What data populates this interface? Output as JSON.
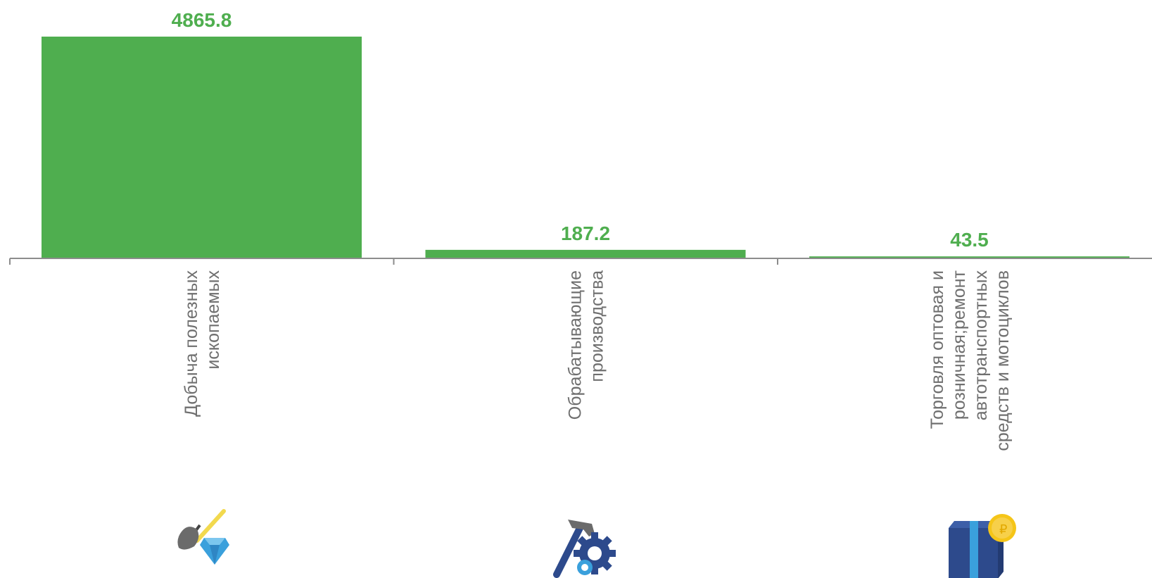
{
  "chart_data": {
    "type": "bar",
    "categories": [
      "Добыча полезных ископаемых",
      "Обрабатывающие производства",
      "Торговля оптовая и розничная;ремонт автотранспортных средств и мотоциклов"
    ],
    "category_lines": [
      [
        "Добыча полезных",
        "ископаемых"
      ],
      [
        "Обрабатывающие",
        "производства"
      ],
      [
        "Торговля оптовая и",
        "розничная;ремонт",
        "автотранспортных",
        "средств и мотоциклов"
      ]
    ],
    "values": [
      4865.8,
      187.2,
      43.5
    ],
    "value_labels": [
      "4865.8",
      "187.2",
      "43.5"
    ],
    "ylim": [
      0,
      4865.8
    ],
    "grid": false,
    "legend": "none",
    "title": "",
    "xlabel": "",
    "ylabel": ""
  },
  "icons": [
    "shovel-diamond-icon",
    "hammer-gear-icon",
    "gift-box-coin-icon"
  ],
  "colors": {
    "bar": "#4fae4f",
    "value_label": "#4fae4f",
    "axis": "#8c8c8c",
    "category_text": "#6f6f6f",
    "icon_blue": "#2d4a8c",
    "icon_light_blue": "#3aa0dc",
    "icon_gray": "#666666",
    "icon_yellow": "#f2c200",
    "coin": "#f5c518"
  }
}
